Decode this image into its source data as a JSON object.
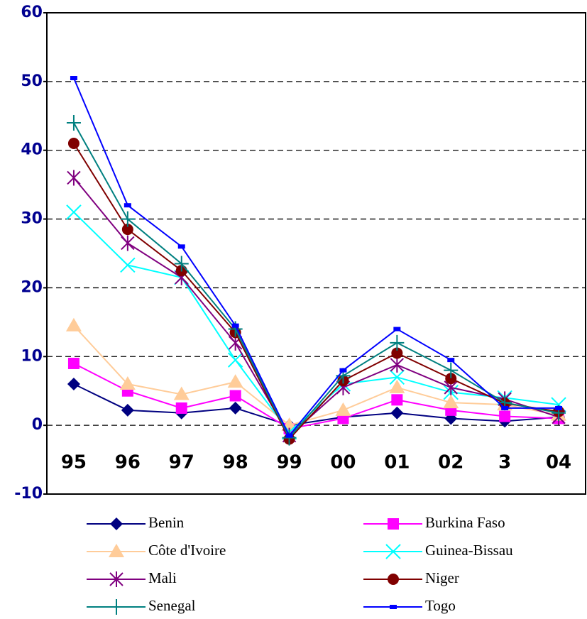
{
  "chart_data": {
    "type": "line",
    "categories": [
      "95",
      "96",
      "97",
      "98",
      "99",
      "00",
      "01",
      "02",
      "3",
      "04"
    ],
    "ylim": [
      -10,
      60
    ],
    "yticks": [
      -10,
      0,
      10,
      20,
      30,
      40,
      50,
      60
    ],
    "grid": true,
    "series": [
      {
        "name": "Benin",
        "color": "#000080",
        "marker": "diamond",
        "values": [
          6,
          2.2,
          1.8,
          2.5,
          0,
          1.2,
          1.8,
          1,
          0.6,
          1.2
        ]
      },
      {
        "name": "Burkina Faso",
        "color": "#ff00ff",
        "marker": "square",
        "values": [
          9,
          5,
          2.5,
          4.3,
          -0.5,
          1,
          3.7,
          2.2,
          1.3,
          1
        ]
      },
      {
        "name": "Côte d'Ivoire",
        "color": "#ffcc99",
        "marker": "triangle",
        "values": [
          14.5,
          6,
          4.5,
          6.3,
          0,
          2.2,
          5.5,
          3.3,
          3,
          1.5
        ]
      },
      {
        "name": "Guinea-Bissau",
        "color": "#00ffff",
        "marker": "x",
        "values": [
          31,
          23.3,
          21.5,
          9.5,
          -1,
          6,
          7,
          4.8,
          4,
          3
        ]
      },
      {
        "name": "Mali",
        "color": "#800080",
        "marker": "star",
        "values": [
          36,
          26.5,
          21.5,
          12,
          -1.5,
          5.5,
          8.8,
          5.5,
          3.8,
          1.2
        ]
      },
      {
        "name": "Niger",
        "color": "#800000",
        "marker": "circle",
        "values": [
          41,
          28.5,
          22.5,
          13.5,
          -2,
          6.5,
          10.5,
          6.8,
          3.2,
          2
        ]
      },
      {
        "name": "Senegal",
        "color": "#008080",
        "marker": "plus",
        "values": [
          44,
          30,
          23.5,
          14,
          -1.8,
          7.2,
          12,
          8,
          3.3,
          1.8
        ]
      },
      {
        "name": "Togo",
        "color": "#0000ff",
        "marker": "dash",
        "values": [
          50.5,
          32,
          26,
          14.5,
          -1.5,
          8,
          14,
          9.5,
          2.5,
          2.5
        ]
      }
    ]
  }
}
